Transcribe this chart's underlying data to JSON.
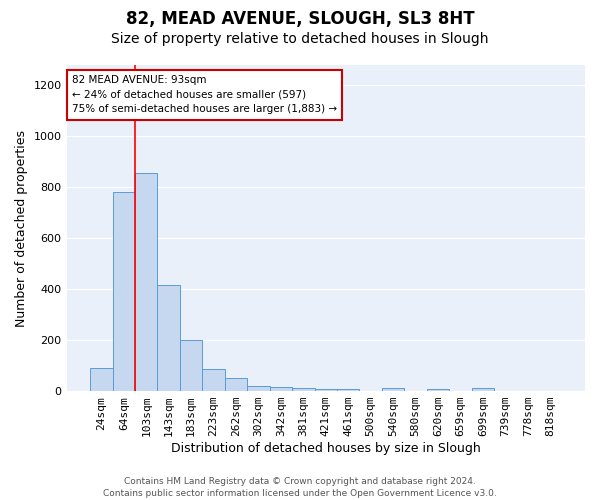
{
  "title1": "82, MEAD AVENUE, SLOUGH, SL3 8HT",
  "title2": "Size of property relative to detached houses in Slough",
  "xlabel": "Distribution of detached houses by size in Slough",
  "ylabel": "Number of detached properties",
  "categories": [
    "24sqm",
    "64sqm",
    "103sqm",
    "143sqm",
    "183sqm",
    "223sqm",
    "262sqm",
    "302sqm",
    "342sqm",
    "381sqm",
    "421sqm",
    "461sqm",
    "500sqm",
    "540sqm",
    "580sqm",
    "620sqm",
    "659sqm",
    "699sqm",
    "739sqm",
    "778sqm",
    "818sqm"
  ],
  "values": [
    90,
    783,
    855,
    418,
    200,
    85,
    52,
    20,
    15,
    12,
    8,
    10,
    0,
    12,
    0,
    10,
    0,
    12,
    0,
    0,
    0
  ],
  "bar_color": "#c5d8f0",
  "bar_edge_color": "#5b9bd5",
  "background_color": "#eaf0fa",
  "grid_color": "#ffffff",
  "red_line_x": 1.5,
  "annotation_line1": "82 MEAD AVENUE: 93sqm",
  "annotation_line2": "← 24% of detached houses are smaller (597)",
  "annotation_line3": "75% of semi-detached houses are larger (1,883) →",
  "annotation_box_color": "#ffffff",
  "annotation_box_edge": "#cc0000",
  "ylim": [
    0,
    1280
  ],
  "yticks": [
    0,
    200,
    400,
    600,
    800,
    1000,
    1200
  ],
  "footer": "Contains HM Land Registry data © Crown copyright and database right 2024.\nContains public sector information licensed under the Open Government Licence v3.0.",
  "title1_fontsize": 12,
  "title2_fontsize": 10,
  "tick_fontsize": 8,
  "ylabel_fontsize": 9,
  "xlabel_fontsize": 9,
  "footer_fontsize": 6.5
}
